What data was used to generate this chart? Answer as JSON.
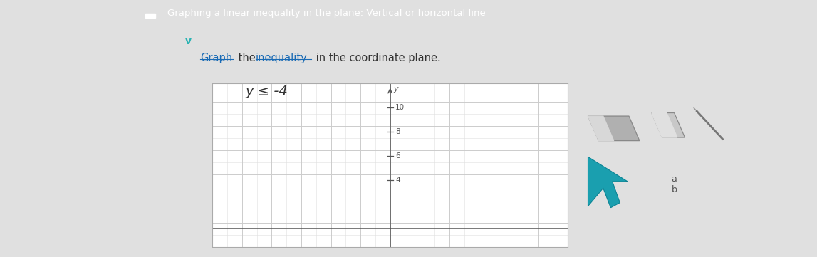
{
  "header_text": "Graphing a linear inequality in the plane: Vertical or horizontal line",
  "header_bg": "#2ab3b3",
  "header_text_color": "#ffffff",
  "page_bg": "#e0e0e0",
  "content_bg": "#ebebeb",
  "left_sidebar_bg": "#3a3a3a",
  "chevron_color": "#2ab3b3",
  "graph_bg": "#ffffff",
  "grid_minor_color": "#e0e0e0",
  "grid_major_color": "#cccccc",
  "axis_color": "#555555",
  "tick_color": "#555555",
  "y_ticks_shown": [
    4,
    6,
    8,
    10
  ],
  "graph_xlim": [
    -12,
    12
  ],
  "graph_ylim": [
    -1.5,
    12
  ],
  "toolbar_bg": "#f5f5f5",
  "toolbar_border": "#cccccc",
  "link_color": "#1a6bb5",
  "text_color": "#333333",
  "equation": "y ≤ -4"
}
